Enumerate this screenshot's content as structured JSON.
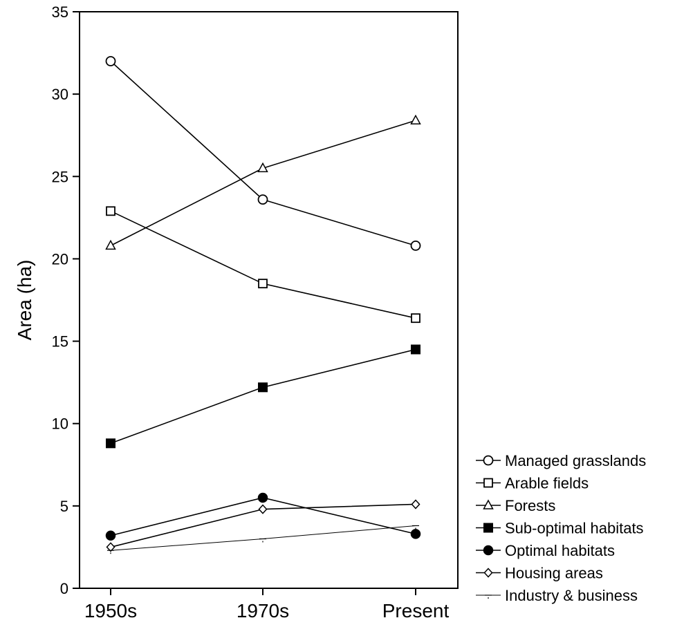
{
  "chart_data": {
    "type": "line",
    "title": "",
    "xlabel": "",
    "ylabel": "Area (ha)",
    "categories": [
      "1950s",
      "1970s",
      "Present"
    ],
    "ylim": [
      0,
      35
    ],
    "yticks": [
      0,
      5,
      10,
      15,
      20,
      25,
      30,
      35
    ],
    "grid": false,
    "legend_position": "bottom-right, outside plot",
    "series": [
      {
        "name": "Managed grasslands",
        "marker": "circle-open",
        "line": "solid",
        "values": [
          32.0,
          23.6,
          20.8
        ]
      },
      {
        "name": "Arable fields",
        "marker": "square-open",
        "line": "solid",
        "values": [
          22.9,
          18.5,
          16.4
        ]
      },
      {
        "name": "Forests",
        "marker": "triangle-open",
        "line": "solid",
        "values": [
          20.8,
          25.5,
          28.4
        ]
      },
      {
        "name": "Sub-optimal habitats",
        "marker": "square-filled",
        "line": "solid",
        "values": [
          8.8,
          12.2,
          14.5
        ]
      },
      {
        "name": "Optimal habitats",
        "marker": "circle-filled",
        "line": "solid",
        "values": [
          3.2,
          5.5,
          3.3
        ]
      },
      {
        "name": "Housing areas",
        "marker": "diamond-open",
        "line": "solid",
        "values": [
          2.5,
          4.8,
          5.1
        ]
      },
      {
        "name": "Industry & business",
        "marker": "dash-dot",
        "line": "thin",
        "values": [
          2.3,
          3.0,
          3.8
        ]
      }
    ],
    "colors": {
      "line": "#000000",
      "background": "#ffffff"
    }
  }
}
